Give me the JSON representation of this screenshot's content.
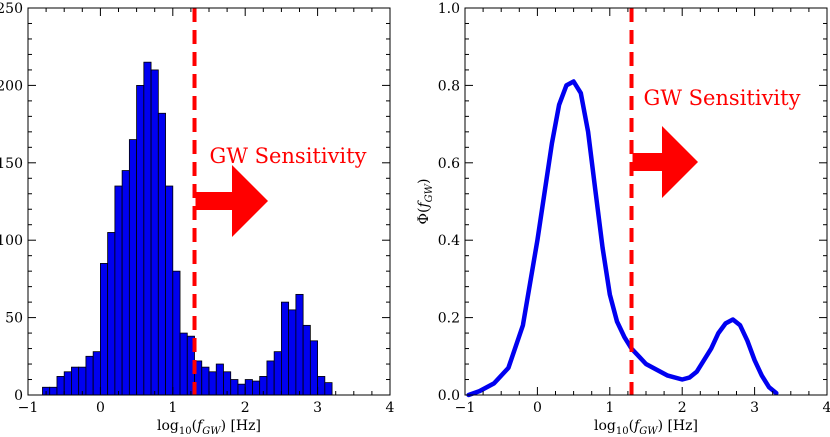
{
  "chart_data": [
    {
      "type": "bar",
      "subtype": "histogram",
      "xlabel": "log10(fGW) [Hz]",
      "ylabel": "",
      "xlim": [
        -1,
        4
      ],
      "ylim": [
        0,
        250
      ],
      "xticks": [
        "−1",
        "0",
        "1",
        "2",
        "3",
        "4"
      ],
      "yticks": [
        "0",
        "50",
        "100",
        "150",
        "200",
        "250"
      ],
      "bin_width": 0.1,
      "bins_start": [
        -0.8,
        -0.7,
        -0.6,
        -0.5,
        -0.4,
        -0.3,
        -0.2,
        -0.1,
        0.0,
        0.1,
        0.2,
        0.3,
        0.4,
        0.5,
        0.6,
        0.7,
        0.8,
        0.9,
        1.0,
        1.1,
        1.2,
        1.3,
        1.4,
        1.5,
        1.6,
        1.7,
        1.8,
        1.9,
        2.0,
        2.1,
        2.2,
        2.3,
        2.4,
        2.5,
        2.6,
        2.7,
        2.8,
        2.9,
        3.0,
        3.1
      ],
      "counts": [
        5,
        5,
        12,
        15,
        18,
        18,
        25,
        28,
        85,
        105,
        135,
        145,
        165,
        200,
        215,
        210,
        182,
        135,
        80,
        40,
        38,
        22,
        18,
        15,
        20,
        15,
        10,
        7,
        10,
        9,
        12,
        22,
        28,
        60,
        55,
        65,
        45,
        35,
        12,
        8
      ],
      "bar_color": "#0000f0",
      "sensitivity_threshold": 1.3,
      "annotation": "GW Sensitivity",
      "annotation_color": "#ff0000"
    },
    {
      "type": "line",
      "xlabel": "log10(fGW) [Hz]",
      "ylabel": "Φ(fGW)",
      "xlim": [
        -1,
        4
      ],
      "ylim": [
        0,
        1.0
      ],
      "xticks": [
        "−1",
        "0",
        "1",
        "2",
        "3",
        "4"
      ],
      "yticks": [
        "0.0",
        "0.2",
        "0.4",
        "0.6",
        "0.8",
        "1.0"
      ],
      "x": [
        -0.95,
        -0.8,
        -0.6,
        -0.4,
        -0.2,
        0.0,
        0.2,
        0.3,
        0.4,
        0.5,
        0.6,
        0.7,
        0.8,
        0.9,
        1.0,
        1.1,
        1.2,
        1.3,
        1.4,
        1.5,
        1.6,
        1.8,
        2.0,
        2.1,
        2.2,
        2.4,
        2.5,
        2.6,
        2.7,
        2.8,
        2.9,
        3.0,
        3.1,
        3.2,
        3.3
      ],
      "y": [
        0.0,
        0.01,
        0.03,
        0.07,
        0.18,
        0.4,
        0.65,
        0.75,
        0.8,
        0.81,
        0.78,
        0.68,
        0.53,
        0.38,
        0.26,
        0.19,
        0.15,
        0.12,
        0.1,
        0.08,
        0.07,
        0.05,
        0.04,
        0.045,
        0.06,
        0.12,
        0.16,
        0.185,
        0.195,
        0.18,
        0.14,
        0.09,
        0.05,
        0.02,
        0.005
      ],
      "line_color": "#0000f0",
      "sensitivity_threshold": 1.3,
      "annotation": "GW Sensitivity",
      "annotation_color": "#ff0000"
    }
  ]
}
